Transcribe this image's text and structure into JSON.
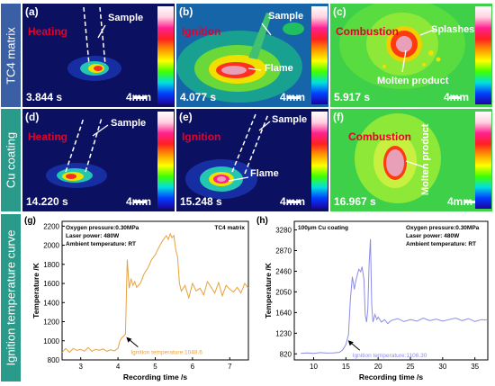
{
  "colors": {
    "frame_blue": "#3a5fa4",
    "frame_teal": "#2a9a8a",
    "state_red": "#e4002b",
    "curve_orange": "#e7a23c",
    "curve_purple": "#8c8ce6"
  },
  "rows": {
    "tc4": "TC4 matrix",
    "cu": "Cu coating",
    "curve": "Ignition temperature curve"
  },
  "panels": {
    "a": {
      "label": "(a)",
      "state": "Heating",
      "time": "3.844 s",
      "scale": "4mm",
      "note": "Sample"
    },
    "b": {
      "label": "(b)",
      "state": "Ignition",
      "time": "4.077 s",
      "scale": "4mm",
      "note": "Sample",
      "note2": "Flame"
    },
    "c": {
      "label": "(c)",
      "state": "Combustion",
      "time": "5.917 s",
      "scale": "4mm",
      "note": "Splashes",
      "note2": "Molten product"
    },
    "d": {
      "label": "(d)",
      "state": "Heating",
      "time": "14.220 s",
      "scale": "4mm",
      "note": "Sample"
    },
    "e": {
      "label": "(e)",
      "state": "Ignition",
      "time": "15.248 s",
      "scale": "4mm",
      "note": "Sample",
      "note2": "Flame"
    },
    "f": {
      "label": "(f)",
      "state": "Combustion",
      "time": "16.967 s",
      "scale": "4mm",
      "note": "Molten product"
    }
  },
  "chart_data": [
    {
      "type": "line",
      "panel_label": "(g)",
      "info": [
        "Oxygen pressure:0.30MPa",
        "Laser power: 480W",
        "Ambient temperature: RT"
      ],
      "corner_label": "TC4 matrix",
      "xlabel": "Recording time /s",
      "ylabel": "Temperature /K",
      "xlim": [
        2.5,
        7.5
      ],
      "ylim": [
        800,
        2250
      ],
      "x_ticks": [
        3,
        4,
        5,
        6,
        7
      ],
      "y_ticks": [
        800,
        1000,
        1200,
        1400,
        1600,
        1800,
        2000,
        2200
      ],
      "annotation": "Ignition temperature:1048.6",
      "annotation_point": [
        4.2,
        1048.6
      ],
      "series": [
        {
          "color": "#e7a23c",
          "x": [
            2.5,
            2.6,
            2.7,
            2.8,
            2.9,
            3.0,
            3.1,
            3.2,
            3.3,
            3.4,
            3.5,
            3.6,
            3.7,
            3.8,
            3.9,
            4.0,
            4.05,
            4.1,
            4.15,
            4.2,
            4.25,
            4.3,
            4.35,
            4.4,
            4.45,
            4.5,
            4.6,
            4.7,
            4.8,
            4.9,
            5.0,
            5.1,
            5.2,
            5.3,
            5.35,
            5.4,
            5.45,
            5.5,
            5.55,
            5.6,
            5.65,
            5.7,
            5.8,
            5.9,
            6.0,
            6.1,
            6.2,
            6.3,
            6.4,
            6.5,
            6.6,
            6.7,
            6.8,
            6.9,
            7.0,
            7.1,
            7.2,
            7.3,
            7.4,
            7.5
          ],
          "y": [
            880,
            920,
            880,
            920,
            900,
            910,
            890,
            930,
            890,
            910,
            900,
            915,
            890,
            905,
            895,
            920,
            1000,
            1030,
            1048.6,
            1070,
            1850,
            1550,
            1650,
            1580,
            1620,
            1560,
            1600,
            1700,
            1760,
            1850,
            1900,
            1980,
            2050,
            2100,
            2060,
            2120,
            2080,
            2100,
            1950,
            1880,
            1600,
            1520,
            1580,
            1450,
            1600,
            1520,
            1550,
            1480,
            1620,
            1560,
            1500,
            1610,
            1470,
            1580,
            1540,
            1510,
            1560,
            1500,
            1600,
            1550
          ]
        }
      ]
    },
    {
      "type": "line",
      "panel_label": "(h)",
      "info": [
        "Oxygen pressure:0.30MPa",
        "Laser power: 480W",
        "Ambient temperature: RT"
      ],
      "corner_label": "100μm Cu coating",
      "xlabel": "Recording time /s",
      "ylabel": "Temperature /K",
      "xlim": [
        7,
        37
      ],
      "ylim": [
        700,
        3450
      ],
      "x_ticks": [
        10,
        15,
        20,
        25,
        30,
        35
      ],
      "y_ticks": [
        820,
        1230,
        1640,
        2050,
        2460,
        2870,
        3280
      ],
      "annotation": "Ignition temperature:1106.30",
      "annotation_point": [
        15.2,
        1106.3
      ],
      "series": [
        {
          "color": "#8c8ce6",
          "x": [
            8,
            9,
            10,
            11,
            12,
            13,
            14,
            14.5,
            15,
            15.2,
            15.4,
            15.7,
            16,
            16.3,
            16.5,
            16.8,
            17,
            17.3,
            17.5,
            17.8,
            18,
            18.2,
            18.4,
            18.6,
            18.8,
            19,
            19.2,
            19.5,
            19.8,
            20,
            20.5,
            21,
            21.5,
            22,
            23,
            24,
            25,
            26,
            27,
            28,
            29,
            30,
            31,
            32,
            33,
            34,
            35,
            36,
            37
          ],
          "y": [
            830,
            840,
            830,
            845,
            835,
            840,
            850,
            900,
            1000,
            1106.3,
            1200,
            1900,
            2350,
            2100,
            2250,
            2400,
            2500,
            2450,
            2550,
            2300,
            1600,
            1450,
            1700,
            2600,
            3100,
            1800,
            1450,
            1600,
            1500,
            1550,
            1450,
            1500,
            1420,
            1480,
            1520,
            1460,
            1500,
            1470,
            1530,
            1480,
            1510,
            1470,
            1500,
            1530,
            1480,
            1520,
            1460,
            1500,
            1490
          ]
        }
      ]
    }
  ]
}
